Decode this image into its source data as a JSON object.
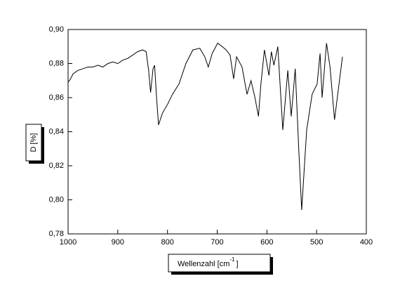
{
  "chart_data": {
    "type": "line",
    "xlabel": [
      "Wellenzahl [cm",
      "-1",
      "]"
    ],
    "ylabel": "D [%]",
    "xlim": [
      1000,
      400
    ],
    "ylim": [
      0.78,
      0.9
    ],
    "xticks": [
      1000,
      900,
      800,
      700,
      600,
      500,
      400
    ],
    "yticks": [
      {
        "value": 0.78,
        "label": "0,78"
      },
      {
        "value": 0.8,
        "label": "0,80"
      },
      {
        "value": 0.82,
        "label": "0,82"
      },
      {
        "value": 0.84,
        "label": "0,84"
      },
      {
        "value": 0.86,
        "label": "0,86"
      },
      {
        "value": 0.88,
        "label": "0,88"
      },
      {
        "value": 0.9,
        "label": "0,90"
      }
    ],
    "series": [
      {
        "color": "#000000",
        "x": [
          1000,
          995,
          990,
          980,
          970,
          960,
          950,
          940,
          930,
          920,
          910,
          900,
          890,
          880,
          870,
          860,
          850,
          843,
          838,
          834,
          829,
          826,
          822,
          818,
          810,
          800,
          790,
          777,
          763,
          749,
          735,
          725,
          718,
          710,
          699,
          690,
          682,
          674,
          667,
          661,
          650,
          640,
          632,
          624,
          617,
          612,
          605,
          596,
          591,
          586,
          578,
          568,
          558,
          551,
          543,
          536,
          530,
          520,
          509,
          499,
          493,
          489,
          480,
          473,
          464,
          448
        ],
        "values": [
          0.869,
          0.871,
          0.874,
          0.876,
          0.877,
          0.878,
          0.878,
          0.879,
          0.878,
          0.88,
          0.881,
          0.88,
          0.882,
          0.883,
          0.885,
          0.887,
          0.888,
          0.887,
          0.876,
          0.863,
          0.877,
          0.879,
          0.86,
          0.844,
          0.851,
          0.856,
          0.862,
          0.868,
          0.88,
          0.888,
          0.889,
          0.884,
          0.878,
          0.886,
          0.892,
          0.89,
          0.888,
          0.885,
          0.871,
          0.884,
          0.878,
          0.862,
          0.87,
          0.86,
          0.849,
          0.868,
          0.888,
          0.873,
          0.887,
          0.879,
          0.89,
          0.841,
          0.876,
          0.849,
          0.877,
          0.83,
          0.794,
          0.841,
          0.862,
          0.868,
          0.886,
          0.86,
          0.892,
          0.878,
          0.847,
          0.884
        ]
      }
    ]
  }
}
